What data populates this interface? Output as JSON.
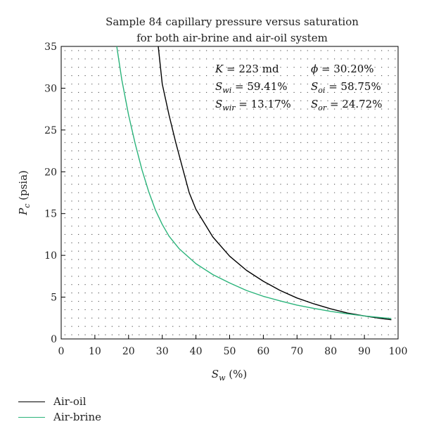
{
  "chart_data": {
    "type": "line",
    "title_lines": [
      "Sample 84 capillary pressure versus saturation",
      "for both air-brine and air-oil system"
    ],
    "xlabel": {
      "main": "S",
      "sub": "w",
      "unit": " (%)"
    },
    "ylabel": {
      "main": "P",
      "sub": "c",
      "unit": " (psia)"
    },
    "xlim": [
      0,
      100
    ],
    "ylim": [
      0,
      35
    ],
    "x_ticks": [
      0,
      10,
      20,
      30,
      40,
      50,
      60,
      70,
      80,
      90,
      100
    ],
    "y_ticks": [
      0,
      5,
      10,
      15,
      20,
      25,
      30,
      35
    ],
    "grid": "dotted",
    "annotations": [
      {
        "main": "K",
        "sub": "",
        "value": " = 223 md"
      },
      {
        "main": "ϕ",
        "sub": "",
        "value": " = 30.20%"
      },
      {
        "main": "S",
        "sub": "wi",
        "value": " = 59.41%"
      },
      {
        "main": "S",
        "sub": "oi",
        "value": " = 58.75%"
      },
      {
        "main": "S",
        "sub": "wir",
        "value": " = 13.17%"
      },
      {
        "main": "S",
        "sub": "or",
        "value": " = 24.72%"
      }
    ],
    "series": [
      {
        "name": "Air-oil",
        "color": "#000000",
        "x": [
          28.8,
          30,
          32,
          34,
          36,
          38,
          40,
          45,
          50,
          55,
          60,
          65,
          70,
          75,
          80,
          85,
          90,
          95,
          98
        ],
        "y": [
          35,
          30.5,
          26.8,
          23.5,
          20.5,
          17.5,
          15.5,
          12.2,
          9.9,
          8.2,
          6.9,
          5.8,
          4.9,
          4.2,
          3.6,
          3.1,
          2.75,
          2.45,
          2.3
        ]
      },
      {
        "name": "Air-brine",
        "color": "#2ab37a",
        "x": [
          16.5,
          18,
          20,
          22,
          24,
          26,
          28,
          30,
          32,
          35,
          40,
          45,
          50,
          55,
          60,
          65,
          70,
          75,
          80,
          85,
          90,
          95,
          98
        ],
        "y": [
          35,
          31,
          26.8,
          23.3,
          20.2,
          17.6,
          15.4,
          13.7,
          12.3,
          10.8,
          9.0,
          7.7,
          6.7,
          5.8,
          5.1,
          4.55,
          4.05,
          3.65,
          3.3,
          3.0,
          2.75,
          2.55,
          2.45
        ]
      }
    ]
  },
  "legend": [
    {
      "label": "Air-oil",
      "color": "#000000"
    },
    {
      "label": "Air-brine",
      "color": "#2ab37a"
    }
  ]
}
